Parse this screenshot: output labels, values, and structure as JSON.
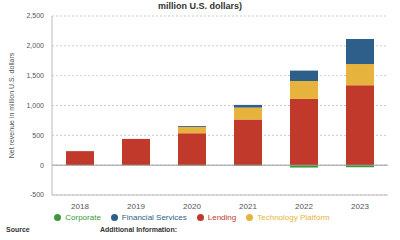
{
  "chart_data": {
    "type": "bar",
    "title": "million U.S. dollars)",
    "y_label": "Net revenue in million U.S. dollars",
    "annotations": [
      "Source",
      "Additional Information:"
    ],
    "categories": [
      "2018",
      "2019",
      "2020",
      "2021",
      "2022",
      "2023"
    ],
    "stacked": true,
    "grid": true,
    "legend": "bottom",
    "ylim": [
      -500,
      2500
    ],
    "yticks": [
      -500,
      0,
      500,
      {
        "value": 1000,
        "label": "1,000"
      },
      {
        "value": 1500,
        "label": "1,500"
      },
      {
        "value": 2000,
        "label": "2,000"
      },
      {
        "value": 2500,
        "label": "2,500"
      }
    ],
    "series": [
      {
        "name": "Lending",
        "color": "#c0392b",
        "values": [
          235,
          440,
          535,
          765,
          1110,
          1340
        ]
      },
      {
        "name": "Technology Platform",
        "color": "#e6b43c",
        "values": [
          null,
          null,
          105,
          200,
          300,
          355
        ]
      },
      {
        "name": "Financial Services",
        "color": "#2e5f8a",
        "values": [
          null,
          null,
          15,
          45,
          175,
          420
        ]
      },
      {
        "name": "Corporate",
        "color": "#3a9a3a",
        "values": [
          null,
          null,
          -10,
          -10,
          -40,
          -35
        ]
      }
    ]
  }
}
